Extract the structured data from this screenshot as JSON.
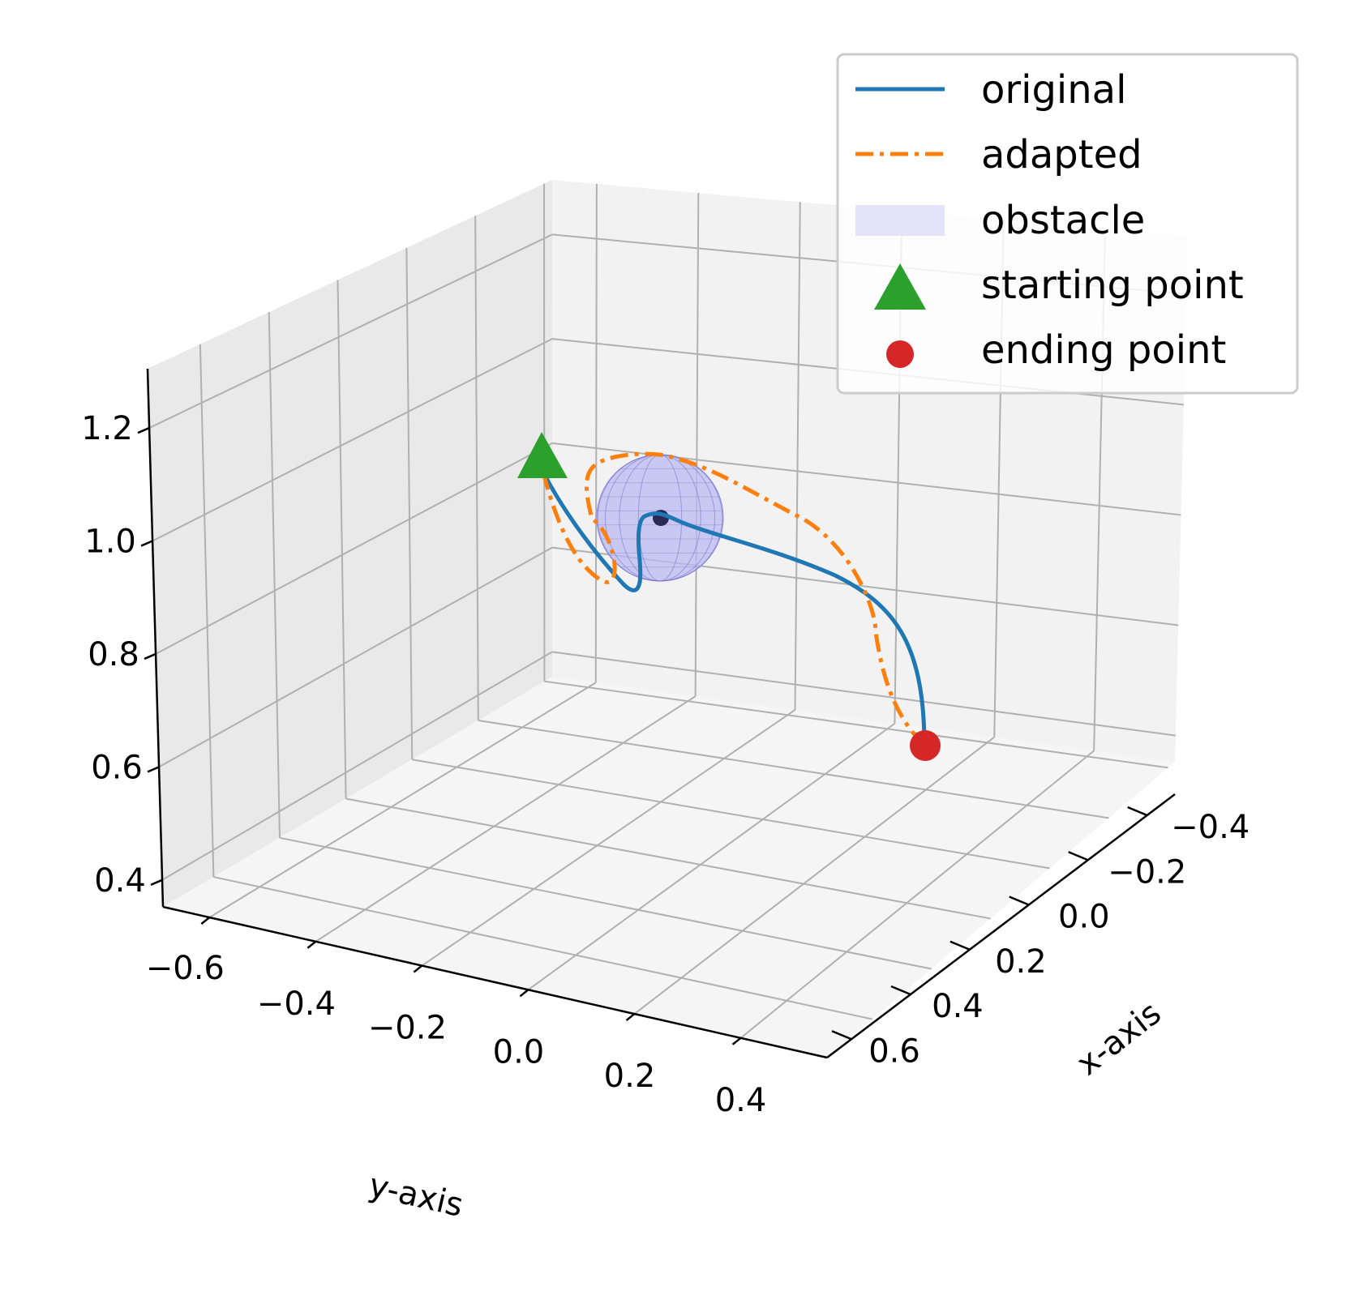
{
  "chart_data": {
    "type": "line",
    "projection": "3d",
    "xlabel": "x-axis",
    "ylabel": "y-axis",
    "zlabel": "",
    "x_ticks": [
      "−0.4",
      "−0.2",
      "0.0",
      "0.2",
      "0.4",
      "0.6"
    ],
    "y_ticks": [
      "−0.6",
      "−0.4",
      "−0.2",
      "0.0",
      "0.2",
      "0.4"
    ],
    "z_ticks": [
      "0.4",
      "0.6",
      "0.8",
      "1.0",
      "1.2"
    ],
    "xlim": [
      -0.5,
      0.7
    ],
    "ylim": [
      -0.7,
      0.55
    ],
    "zlim": [
      0.35,
      1.3
    ],
    "grid": true,
    "legend_position": "top-right",
    "legend": [
      {
        "label": "original",
        "kind": "line-solid",
        "color": "#1f77b4"
      },
      {
        "label": "adapted",
        "kind": "line-dashdot",
        "color": "#ff7f0e"
      },
      {
        "label": "obstacle",
        "kind": "patch",
        "color": "#e3e3fa"
      },
      {
        "label": "starting point",
        "kind": "triangle-marker",
        "color": "#2ca02c"
      },
      {
        "label": "ending point",
        "kind": "circle-marker",
        "color": "#d62728"
      }
    ],
    "series": [
      {
        "name": "original",
        "color": "#1f77b4",
        "style": "solid",
        "points": [
          {
            "x": -0.5,
            "y": -0.2,
            "z": 1.18
          },
          {
            "x": -0.4,
            "y": -0.16,
            "z": 1.08
          },
          {
            "x": -0.3,
            "y": -0.11,
            "z": 0.99
          },
          {
            "x": -0.2,
            "y": -0.06,
            "z": 0.93
          },
          {
            "x": -0.15,
            "y": -0.04,
            "z": 0.9
          },
          {
            "x": -0.1,
            "y": -0.04,
            "z": 0.95
          },
          {
            "x": -0.08,
            "y": -0.03,
            "z": 1.06
          },
          {
            "x": -0.06,
            "y": 0.0,
            "z": 1.1
          },
          {
            "x": 0.0,
            "y": 0.05,
            "z": 1.08
          },
          {
            "x": 0.1,
            "y": 0.1,
            "z": 1.07
          },
          {
            "x": 0.2,
            "y": 0.15,
            "z": 1.04
          },
          {
            "x": 0.3,
            "y": 0.2,
            "z": 0.99
          },
          {
            "x": 0.4,
            "y": 0.25,
            "z": 0.92
          },
          {
            "x": 0.5,
            "y": 0.28,
            "z": 0.84
          },
          {
            "x": 0.6,
            "y": 0.3,
            "z": 0.76
          }
        ]
      },
      {
        "name": "adapted",
        "color": "#ff7f0e",
        "style": "dashdot",
        "points": [
          {
            "x": -0.5,
            "y": -0.2,
            "z": 1.18
          },
          {
            "x": -0.42,
            "y": -0.14,
            "z": 1.1
          },
          {
            "x": -0.32,
            "y": -0.1,
            "z": 1.02
          },
          {
            "x": -0.22,
            "y": -0.07,
            "z": 0.95
          },
          {
            "x": -0.2,
            "y": -0.11,
            "z": 1.02
          },
          {
            "x": -0.2,
            "y": -0.14,
            "z": 1.14
          },
          {
            "x": -0.15,
            "y": -0.08,
            "z": 1.21
          },
          {
            "x": -0.05,
            "y": 0.0,
            "z": 1.22
          },
          {
            "x": 0.05,
            "y": 0.07,
            "z": 1.18
          },
          {
            "x": 0.15,
            "y": 0.13,
            "z": 1.12
          },
          {
            "x": 0.25,
            "y": 0.18,
            "z": 1.05
          },
          {
            "x": 0.35,
            "y": 0.23,
            "z": 0.97
          },
          {
            "x": 0.45,
            "y": 0.26,
            "z": 0.88
          },
          {
            "x": 0.55,
            "y": 0.28,
            "z": 0.8
          },
          {
            "x": 0.6,
            "y": 0.3,
            "z": 0.76
          }
        ]
      }
    ],
    "obstacle": {
      "shape": "sphere",
      "center": {
        "x": -0.05,
        "y": 0.0,
        "z": 1.1
      },
      "radius": 0.12,
      "color": "#9999ee"
    },
    "start": {
      "x": -0.5,
      "y": -0.2,
      "z": 1.18,
      "marker": "triangle",
      "color": "#2ca02c"
    },
    "end": {
      "x": 0.6,
      "y": 0.3,
      "z": 0.76,
      "marker": "circle",
      "color": "#d62728"
    }
  }
}
